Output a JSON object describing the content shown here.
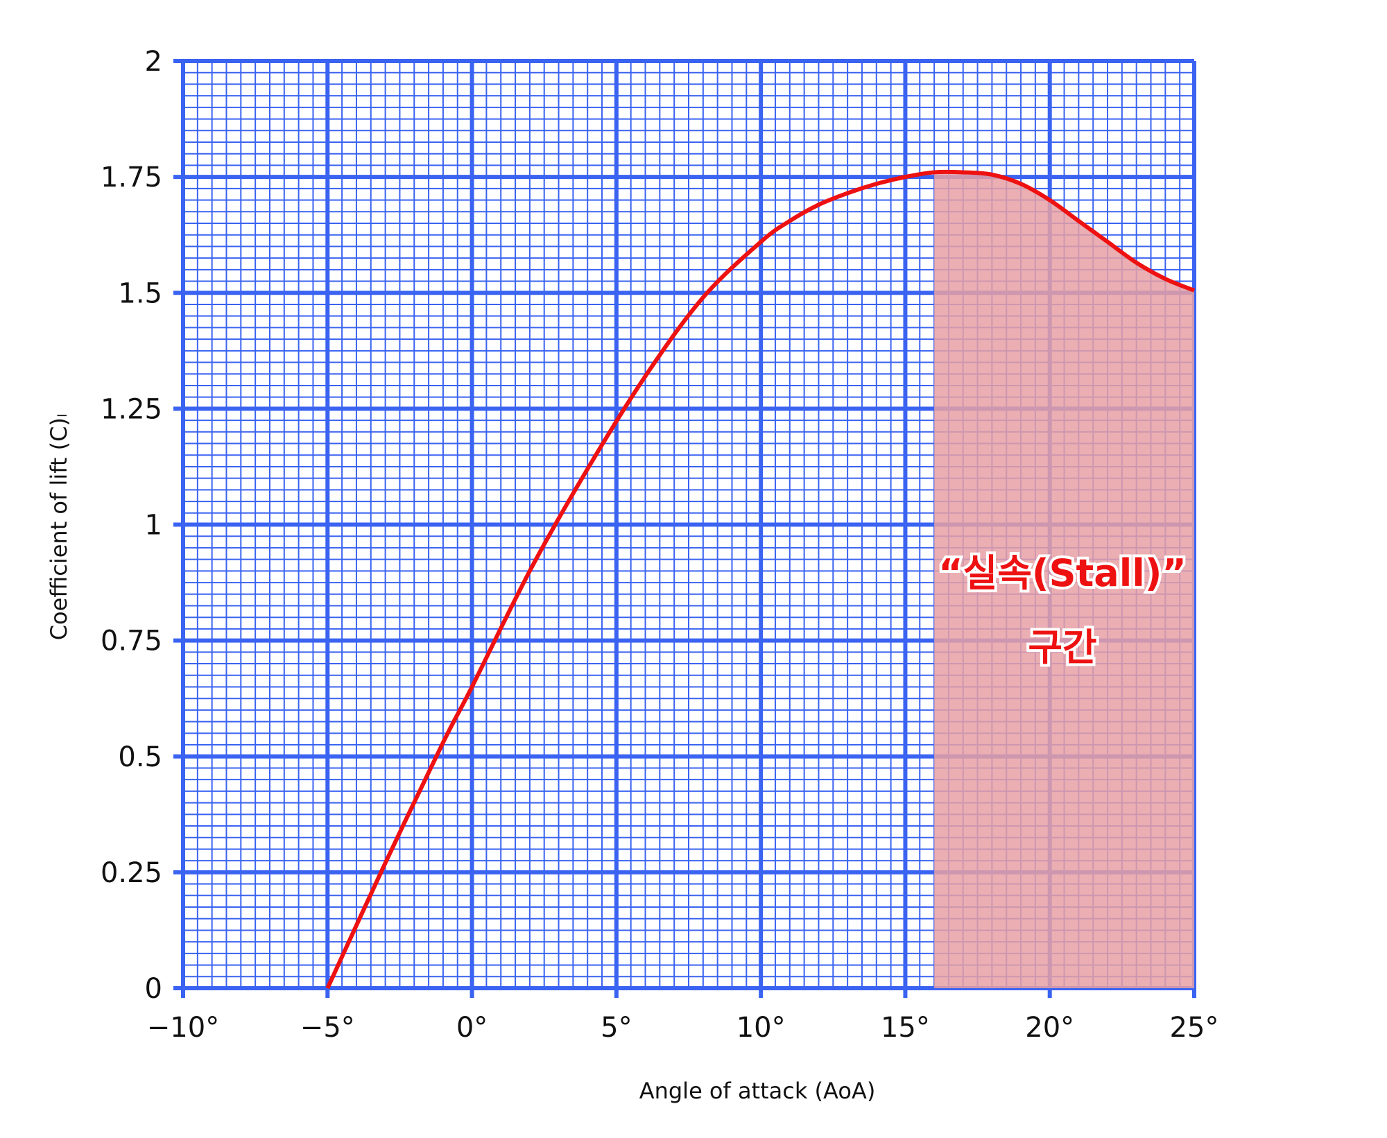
{
  "chart_data": {
    "type": "line",
    "xlabel": "Angle of attack (AoA)",
    "ylabel": "Coefficient of lift (C)ₗ",
    "xlim": [
      -10,
      25
    ],
    "ylim": [
      0,
      2
    ],
    "x_ticks": [
      -10,
      -5,
      0,
      5,
      10,
      15,
      20,
      25
    ],
    "x_tick_labels": [
      "−10°",
      "−5°",
      "0°",
      "5°",
      "10°",
      "15°",
      "20°",
      "25°"
    ],
    "y_ticks": [
      0,
      0.25,
      0.5,
      0.75,
      1,
      1.25,
      1.5,
      1.75,
      2
    ],
    "y_tick_labels": [
      "0",
      "0.25",
      "0.5",
      "0.75",
      "1",
      "1.25",
      "1.5",
      "1.75",
      "2"
    ],
    "grid": true,
    "series": [
      {
        "x": [
          -5,
          -3,
          -1,
          0,
          2,
          4,
          6,
          8,
          10,
          11,
          12,
          13,
          14,
          15,
          16,
          17,
          18,
          19,
          20,
          21,
          22,
          23,
          24,
          25
        ],
        "y": [
          0,
          0.27,
          0.53,
          0.65,
          0.9,
          1.12,
          1.32,
          1.49,
          1.61,
          1.655,
          1.69,
          1.715,
          1.735,
          1.75,
          1.76,
          1.76,
          1.755,
          1.735,
          1.7,
          1.655,
          1.61,
          1.565,
          1.53,
          1.505
        ],
        "color": "#ee1111"
      }
    ],
    "shaded_region": {
      "x_range": [
        16,
        25
      ],
      "color": "#e8a0a4",
      "label_line1": "“실속(Stall)”",
      "label_line2": "구간"
    },
    "grid_color": "#3a63f2"
  }
}
